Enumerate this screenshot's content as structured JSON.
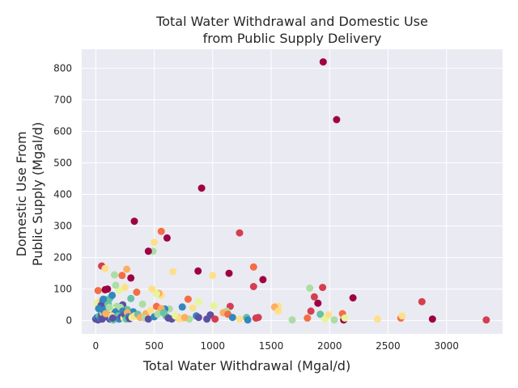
{
  "chart_data": {
    "type": "scatter",
    "title": [
      "Total Water Withdrawal and Domestic Use",
      "from Public Supply Delivery"
    ],
    "xlabel": "Total Water Withdrawal (Mgal/d)",
    "ylabel": [
      "Domestic Use From",
      "Public Supply (Mgal/d)"
    ],
    "xlim": [
      -120,
      3480
    ],
    "ylim": [
      -42,
      860
    ],
    "xticks": [
      0,
      500,
      1000,
      1500,
      2000,
      2500,
      3000
    ],
    "yticks": [
      0,
      100,
      200,
      300,
      400,
      500,
      600,
      700,
      800
    ],
    "grid": true,
    "colormap": "Spectral",
    "colors": [
      "#9e0142",
      "#d53e4f",
      "#f46d43",
      "#fdae61",
      "#fee08b",
      "#e6f598",
      "#abdda4",
      "#66c2a5",
      "#3288bd",
      "#5e4fa2"
    ],
    "points": [
      [
        1945,
        820,
        0
      ],
      [
        2060,
        637,
        0
      ],
      [
        905,
        420,
        0
      ],
      [
        330,
        315,
        0
      ],
      [
        560,
        283,
        2
      ],
      [
        610,
        262,
        0
      ],
      [
        1230,
        278,
        1
      ],
      [
        500,
        248,
        4
      ],
      [
        490,
        220,
        6
      ],
      [
        450,
        220,
        0
      ],
      [
        660,
        155,
        4
      ],
      [
        875,
        157,
        0
      ],
      [
        50,
        173,
        1
      ],
      [
        80,
        165,
        4
      ],
      [
        265,
        163,
        3
      ],
      [
        160,
        145,
        6
      ],
      [
        225,
        143,
        2
      ],
      [
        300,
        135,
        0
      ],
      [
        1000,
        143,
        4
      ],
      [
        1140,
        150,
        0
      ],
      [
        1350,
        170,
        2
      ],
      [
        1430,
        130,
        0
      ],
      [
        1350,
        108,
        1
      ],
      [
        1830,
        103,
        6
      ],
      [
        1940,
        105,
        1
      ],
      [
        2200,
        72,
        0
      ],
      [
        2790,
        60,
        1
      ],
      [
        1870,
        75,
        1
      ],
      [
        1900,
        55,
        0
      ],
      [
        1560,
        45,
        4
      ],
      [
        1530,
        43,
        3
      ],
      [
        1150,
        45,
        1
      ],
      [
        1120,
        30,
        6
      ],
      [
        1010,
        47,
        5
      ],
      [
        880,
        60,
        5
      ],
      [
        830,
        40,
        4
      ],
      [
        790,
        68,
        2
      ],
      [
        740,
        43,
        8
      ],
      [
        630,
        37,
        6
      ],
      [
        590,
        37,
        8
      ],
      [
        560,
        80,
        4
      ],
      [
        540,
        87,
        3
      ],
      [
        520,
        85,
        5
      ],
      [
        480,
        100,
        4
      ],
      [
        350,
        90,
        2
      ],
      [
        300,
        70,
        7
      ],
      [
        250,
        105,
        4
      ],
      [
        200,
        95,
        5
      ],
      [
        170,
        112,
        6
      ],
      [
        100,
        100,
        0
      ],
      [
        80,
        98,
        0
      ],
      [
        20,
        95,
        2
      ],
      [
        10,
        55,
        5
      ],
      [
        40,
        60,
        4
      ],
      [
        60,
        62,
        8
      ],
      [
        90,
        65,
        9
      ],
      [
        120,
        70,
        7
      ],
      [
        140,
        80,
        8
      ],
      [
        180,
        45,
        6
      ],
      [
        230,
        50,
        9
      ],
      [
        270,
        35,
        7
      ],
      [
        320,
        28,
        8
      ],
      [
        400,
        52,
        6
      ],
      [
        430,
        22,
        3
      ],
      [
        470,
        32,
        4
      ],
      [
        520,
        45,
        2
      ],
      [
        560,
        38,
        3
      ],
      [
        600,
        15,
        7
      ],
      [
        650,
        5,
        9
      ],
      [
        700,
        10,
        3
      ],
      [
        750,
        8,
        4
      ],
      [
        800,
        5,
        6
      ],
      [
        860,
        15,
        8
      ],
      [
        880,
        10,
        9
      ],
      [
        950,
        5,
        9
      ],
      [
        980,
        18,
        9
      ],
      [
        1020,
        5,
        1
      ],
      [
        1090,
        25,
        3
      ],
      [
        1130,
        20,
        2
      ],
      [
        1170,
        10,
        8
      ],
      [
        1230,
        5,
        4
      ],
      [
        1290,
        10,
        7
      ],
      [
        1300,
        2,
        8
      ],
      [
        1370,
        8,
        1
      ],
      [
        1390,
        10,
        1
      ],
      [
        1560,
        30,
        4
      ],
      [
        1680,
        2,
        6
      ],
      [
        1810,
        8,
        2
      ],
      [
        1840,
        30,
        1
      ],
      [
        1920,
        20,
        7
      ],
      [
        1960,
        5,
        5
      ],
      [
        1990,
        18,
        4
      ],
      [
        2040,
        2,
        6
      ],
      [
        2110,
        22,
        2
      ],
      [
        2120,
        2,
        0
      ],
      [
        2130,
        8,
        5
      ],
      [
        2410,
        5,
        4
      ],
      [
        2610,
        8,
        2
      ],
      [
        2620,
        15,
        4
      ],
      [
        2880,
        5,
        0
      ],
      [
        3340,
        2,
        1
      ],
      [
        0,
        5,
        9
      ],
      [
        10,
        10,
        8
      ],
      [
        20,
        2,
        9
      ],
      [
        30,
        15,
        7
      ],
      [
        40,
        8,
        8
      ],
      [
        50,
        20,
        9
      ],
      [
        60,
        25,
        6
      ],
      [
        70,
        30,
        8
      ],
      [
        80,
        12,
        9
      ],
      [
        90,
        40,
        7
      ],
      [
        100,
        18,
        8
      ],
      [
        110,
        50,
        6
      ],
      [
        120,
        5,
        9
      ],
      [
        130,
        8,
        8
      ],
      [
        140,
        35,
        5
      ],
      [
        150,
        2,
        7
      ],
      [
        160,
        22,
        9
      ],
      [
        170,
        28,
        8
      ],
      [
        180,
        10,
        4
      ],
      [
        190,
        15,
        7
      ],
      [
        200,
        5,
        8
      ],
      [
        210,
        42,
        6
      ],
      [
        220,
        12,
        9
      ],
      [
        230,
        30,
        8
      ],
      [
        240,
        8,
        5
      ],
      [
        250,
        18,
        9
      ],
      [
        260,
        5,
        7
      ],
      [
        270,
        25,
        3
      ],
      [
        280,
        12,
        8
      ],
      [
        290,
        6,
        9
      ],
      [
        310,
        10,
        5
      ],
      [
        330,
        15,
        4
      ],
      [
        360,
        20,
        7
      ],
      [
        380,
        10,
        3
      ],
      [
        420,
        8,
        6
      ],
      [
        450,
        5,
        9
      ],
      [
        500,
        12,
        8
      ],
      [
        530,
        20,
        6
      ],
      [
        580,
        25,
        7
      ],
      [
        620,
        8,
        9
      ],
      [
        680,
        15,
        5
      ],
      [
        720,
        5,
        4
      ],
      [
        760,
        10,
        3
      ],
      [
        45,
        48,
        9
      ],
      [
        75,
        35,
        8
      ],
      [
        105,
        55,
        7
      ],
      [
        135,
        15,
        4
      ],
      [
        25,
        38,
        8
      ],
      [
        55,
        5,
        9
      ],
      [
        85,
        22,
        3
      ],
      [
        115,
        42,
        6
      ],
      [
        145,
        8,
        9
      ],
      [
        65,
        68,
        8
      ]
    ]
  }
}
